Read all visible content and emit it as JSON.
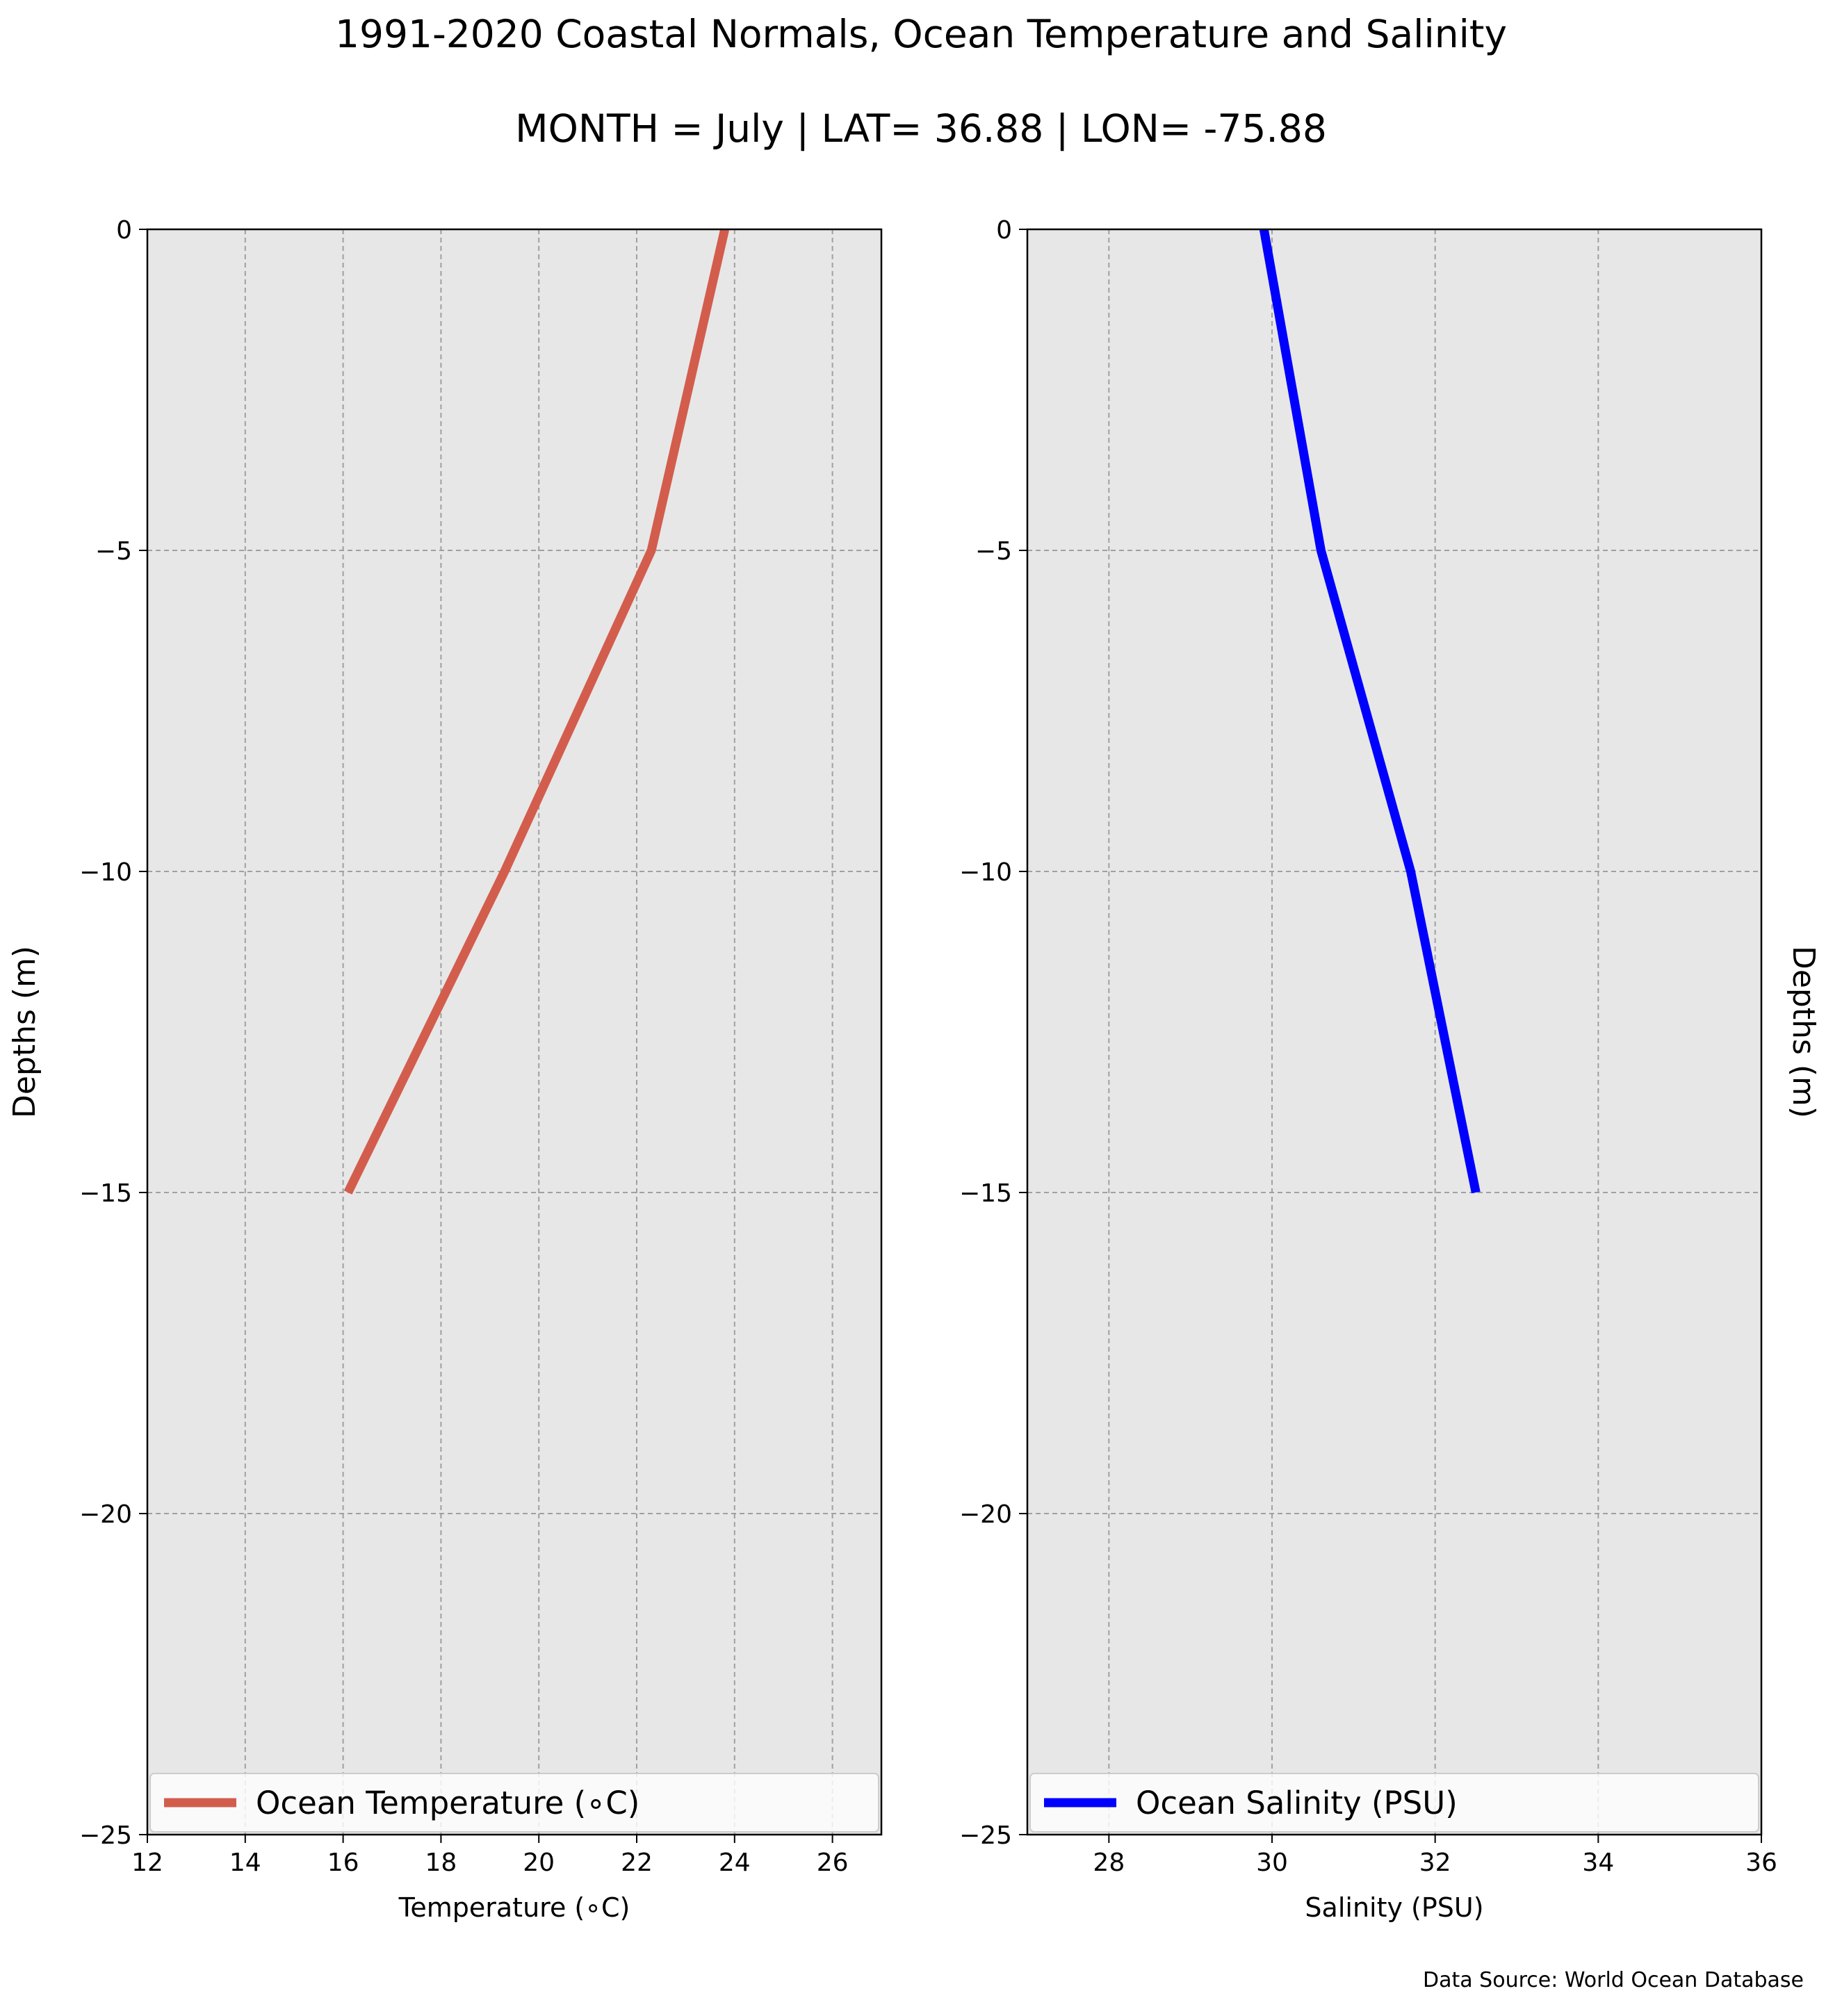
{
  "figure": {
    "title": "1991-2020 Coastal Normals, Ocean Temperature and Salinity",
    "subtitle": "MONTH = July | LAT= 36.88 | LON= -75.88",
    "source_note": "Data Source: World Ocean Database"
  },
  "colors": {
    "temperature_line": "#d35d4d",
    "salinity_line": "#0000ff",
    "plot_background": "#e7e7e7",
    "grid": "#a0a0a0"
  },
  "chart_data": [
    {
      "type": "line",
      "series": [
        {
          "name": "Ocean Temperature ($^\\circ$C)",
          "display_name": "Ocean Temperature (∘C)",
          "x": [
            23.8,
            22.3,
            19.3,
            16.1
          ],
          "y": [
            0,
            -5,
            -10,
            -15
          ]
        }
      ],
      "xlabel": "Temperature (∘C)",
      "ylabel": "Depths (m)",
      "xlim": [
        12,
        27
      ],
      "ylim": [
        -25,
        0
      ],
      "xticks": [
        12,
        14,
        16,
        18,
        20,
        22,
        24,
        26
      ],
      "yticks": [
        0,
        -5,
        -10,
        -15,
        -20,
        -25
      ],
      "xtick_labels": [
        "12",
        "14",
        "16",
        "18",
        "20",
        "22",
        "24",
        "26"
      ],
      "ytick_labels": [
        "0",
        "−5",
        "−10",
        "−15",
        "−20",
        "−25"
      ],
      "grid": true,
      "legend": "lower center",
      "ylabel_side": "left"
    },
    {
      "type": "line",
      "series": [
        {
          "name": "Ocean Salinity (PSU)",
          "display_name": "Ocean Salinity (PSU)",
          "x": [
            29.9,
            30.6,
            31.7,
            32.5
          ],
          "y": [
            0,
            -5,
            -10,
            -15
          ]
        }
      ],
      "xlabel": "Salinity (PSU)",
      "ylabel": "Depths (m)",
      "xlim": [
        27,
        36
      ],
      "ylim": [
        -25,
        0
      ],
      "xticks": [
        28,
        30,
        32,
        34,
        36
      ],
      "yticks": [
        0,
        -5,
        -10,
        -15,
        -20,
        -25
      ],
      "xtick_labels": [
        "28",
        "30",
        "32",
        "34",
        "36"
      ],
      "ytick_labels": [
        "0",
        "−5",
        "−10",
        "−15",
        "−20",
        "−25"
      ],
      "grid": true,
      "legend": "lower center",
      "ylabel_side": "right"
    }
  ]
}
